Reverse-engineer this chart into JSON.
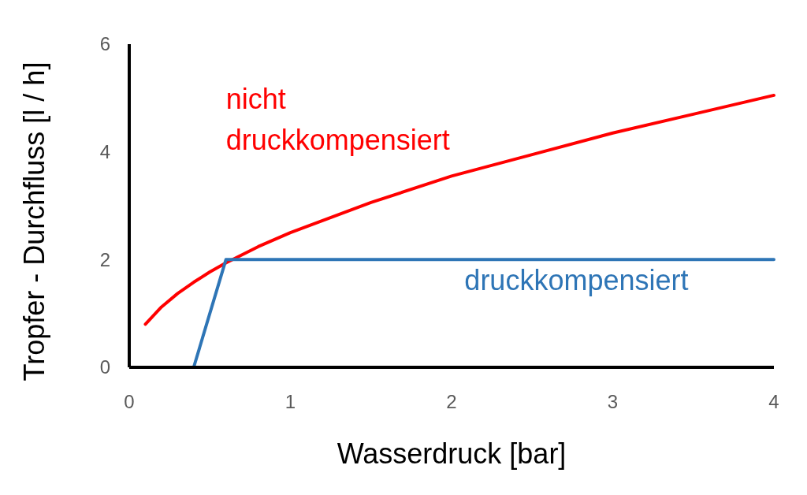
{
  "chart_data": {
    "type": "line",
    "xlabel": "Wasserdruck [bar]",
    "ylabel": "Tropfer - Durchfluss [l / h]",
    "xlim": [
      0,
      4
    ],
    "ylim": [
      0,
      6
    ],
    "xticks": [
      0,
      1,
      2,
      3,
      4
    ],
    "yticks": [
      0,
      2,
      4,
      6
    ],
    "grid": false,
    "legend": false,
    "marker": "none",
    "line_style": "solid",
    "series": [
      {
        "name": "nicht druckkompensiert",
        "color": "#ff0000",
        "x": [
          0.1,
          0.2,
          0.3,
          0.4,
          0.5,
          0.6,
          0.8,
          1,
          1.5,
          2,
          2.5,
          3,
          3.5,
          4
        ],
        "values": [
          0.8,
          1.12,
          1.37,
          1.58,
          1.77,
          1.94,
          2.24,
          2.5,
          3.06,
          3.55,
          3.95,
          4.35,
          4.7,
          5.05
        ]
      },
      {
        "name": "druckkompensiert",
        "color": "#2e75b6",
        "x": [
          0.1,
          0.4,
          0.6,
          4
        ],
        "values": [
          0,
          0,
          2,
          2
        ]
      }
    ]
  }
}
